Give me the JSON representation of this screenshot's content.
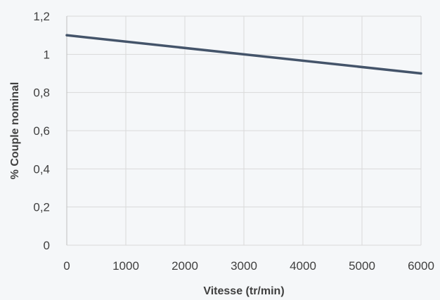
{
  "chart_data": {
    "type": "line",
    "xlabel": "Vitesse (tr/min)",
    "ylabel": "% Couple nominal",
    "xlim": [
      0,
      6000
    ],
    "ylim": [
      0,
      1.2
    ],
    "x_ticks": [
      "0",
      "1000",
      "2000",
      "3000",
      "4000",
      "5000",
      "6000"
    ],
    "y_ticks": [
      "0",
      "0,2",
      "0,4",
      "0,6",
      "0,8",
      "1",
      "1,2"
    ],
    "grid": true,
    "legend": "none",
    "series": [
      {
        "color": "#44546a",
        "points": [
          {
            "x": 0,
            "y": 1.1
          },
          {
            "x": 6000,
            "y": 0.9
          }
        ]
      }
    ]
  }
}
